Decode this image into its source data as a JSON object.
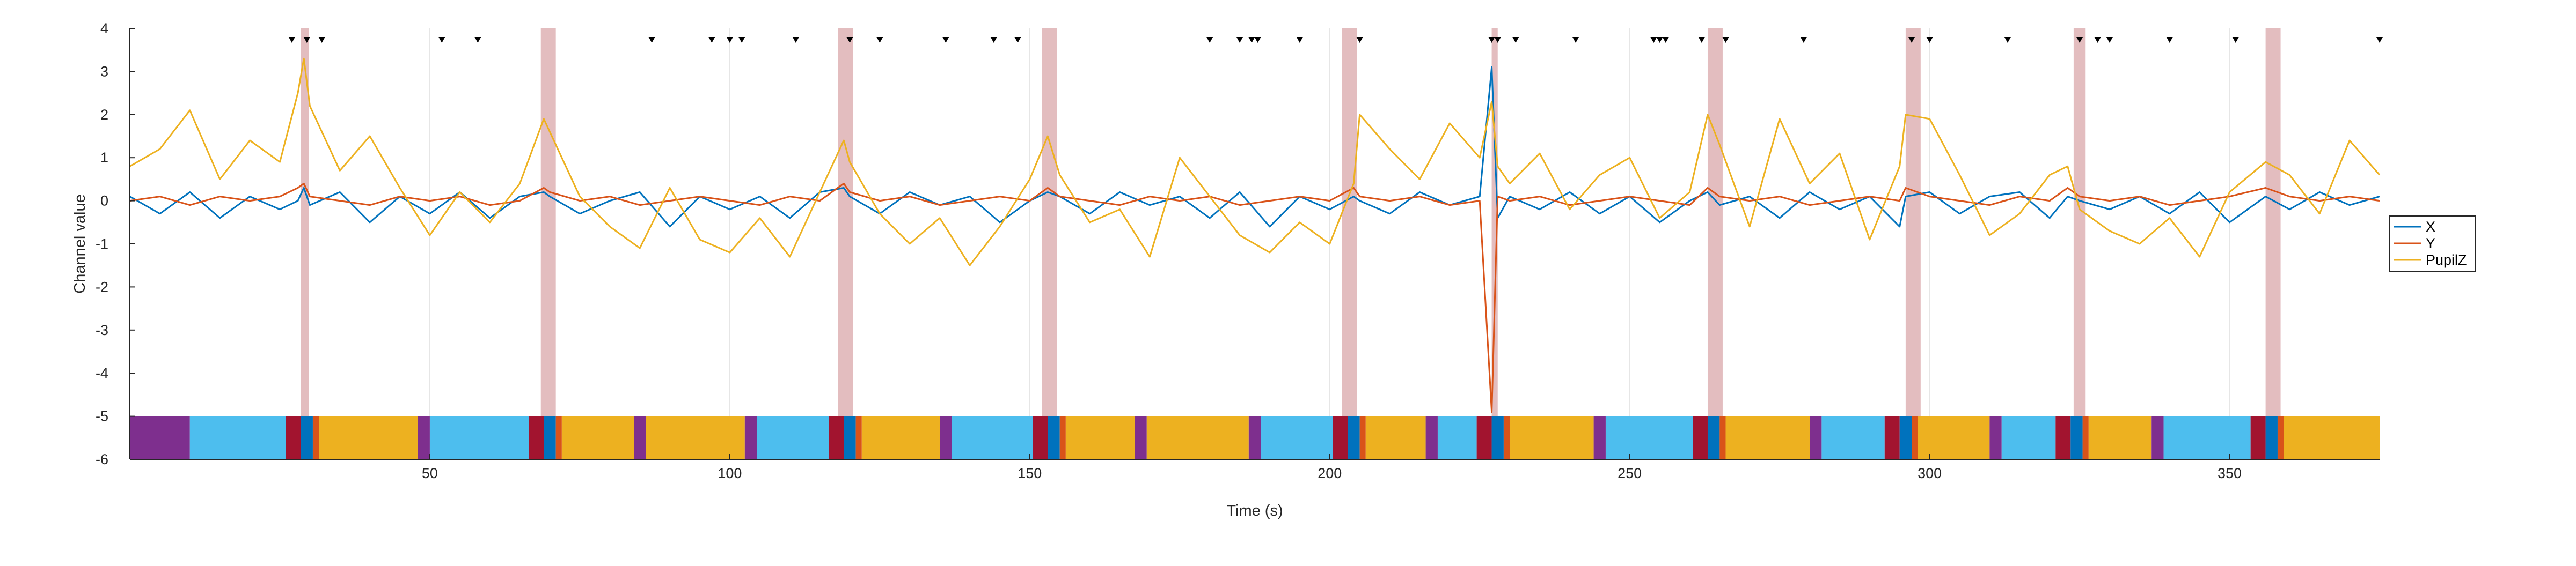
{
  "chart_data": {
    "type": "line",
    "xlabel": "Time (s)",
    "ylabel": "Channel value",
    "xlim": [
      0,
      375
    ],
    "ylim": [
      -6,
      4
    ],
    "xticks": [
      50,
      100,
      150,
      200,
      250,
      300,
      350
    ],
    "yticks": [
      -6,
      -5,
      -4,
      -3,
      -2,
      -1,
      0,
      1,
      2,
      3,
      4
    ],
    "grid": "vertical",
    "legend_position": "right",
    "colors": {
      "X": "#0072BD",
      "Y": "#D95319",
      "PupilZ": "#EDB120",
      "highlight": "#C77B80"
    },
    "series": [
      {
        "name": "X",
        "x": [
          0,
          5,
          10,
          15,
          20,
          25,
          28,
          29,
          30,
          35,
          40,
          45,
          50,
          55,
          60,
          65,
          69,
          70,
          75,
          80,
          85,
          90,
          95,
          100,
          105,
          110,
          115,
          119,
          120,
          125,
          130,
          135,
          140,
          145,
          150,
          153,
          155,
          160,
          165,
          170,
          175,
          180,
          185,
          190,
          195,
          200,
          204,
          205,
          210,
          215,
          220,
          225,
          227,
          228,
          230,
          235,
          240,
          245,
          250,
          255,
          260,
          263,
          265,
          270,
          275,
          280,
          285,
          290,
          295,
          296,
          300,
          305,
          310,
          315,
          320,
          323,
          325,
          330,
          335,
          340,
          345,
          350,
          356,
          360,
          365,
          370,
          375
        ],
        "y": [
          0.1,
          -0.3,
          0.2,
          -0.4,
          0.1,
          -0.2,
          0.0,
          0.3,
          -0.1,
          0.2,
          -0.5,
          0.1,
          -0.3,
          0.2,
          -0.4,
          0.1,
          0.2,
          0.1,
          -0.3,
          0.0,
          0.2,
          -0.6,
          0.1,
          -0.2,
          0.1,
          -0.4,
          0.2,
          0.3,
          0.1,
          -0.3,
          0.2,
          -0.1,
          0.1,
          -0.5,
          0.0,
          0.2,
          0.1,
          -0.3,
          0.2,
          -0.1,
          0.1,
          -0.4,
          0.2,
          -0.6,
          0.1,
          -0.2,
          0.1,
          0.0,
          -0.3,
          0.2,
          -0.1,
          0.1,
          3.1,
          -0.4,
          0.1,
          -0.2,
          0.2,
          -0.3,
          0.1,
          -0.5,
          0.0,
          0.2,
          -0.1,
          0.1,
          -0.4,
          0.2,
          -0.2,
          0.1,
          -0.6,
          0.1,
          0.2,
          -0.3,
          0.1,
          0.2,
          -0.4,
          0.1,
          0.0,
          -0.2,
          0.1,
          -0.3,
          0.2,
          -0.5,
          0.1,
          -0.2,
          0.2,
          -0.1,
          0.1
        ]
      },
      {
        "name": "Y",
        "x": [
          0,
          5,
          10,
          15,
          20,
          25,
          28,
          29,
          30,
          35,
          40,
          45,
          50,
          55,
          60,
          65,
          69,
          70,
          75,
          80,
          85,
          90,
          95,
          100,
          105,
          110,
          115,
          119,
          120,
          125,
          130,
          135,
          140,
          145,
          150,
          153,
          155,
          160,
          165,
          170,
          175,
          180,
          185,
          190,
          195,
          200,
          204,
          205,
          210,
          215,
          220,
          225,
          227,
          228,
          230,
          235,
          240,
          245,
          250,
          255,
          260,
          263,
          265,
          270,
          275,
          280,
          285,
          290,
          295,
          296,
          300,
          305,
          310,
          315,
          320,
          323,
          325,
          330,
          335,
          340,
          345,
          350,
          356,
          360,
          365,
          370,
          375
        ],
        "y": [
          0.0,
          0.1,
          -0.1,
          0.1,
          0.0,
          0.1,
          0.3,
          0.4,
          0.1,
          0.0,
          -0.1,
          0.1,
          0.0,
          0.1,
          -0.1,
          0.0,
          0.3,
          0.2,
          0.0,
          0.1,
          -0.1,
          0.0,
          0.1,
          0.0,
          -0.1,
          0.1,
          0.0,
          0.4,
          0.2,
          0.0,
          0.1,
          -0.1,
          0.0,
          0.1,
          0.0,
          0.3,
          0.1,
          0.0,
          -0.1,
          0.1,
          0.0,
          0.1,
          -0.1,
          0.0,
          0.1,
          0.0,
          0.3,
          0.1,
          0.0,
          0.1,
          -0.1,
          0.0,
          -4.9,
          0.1,
          0.0,
          0.1,
          -0.1,
          0.0,
          0.1,
          0.0,
          -0.1,
          0.3,
          0.1,
          0.0,
          0.1,
          -0.1,
          0.0,
          0.1,
          0.0,
          0.3,
          0.1,
          0.0,
          -0.1,
          0.1,
          0.0,
          0.3,
          0.1,
          0.0,
          0.1,
          -0.1,
          0.0,
          0.1,
          0.3,
          0.1,
          0.0,
          0.1,
          0.0
        ]
      },
      {
        "name": "PupilZ",
        "x": [
          0,
          5,
          10,
          15,
          20,
          25,
          28,
          29,
          30,
          35,
          40,
          45,
          50,
          55,
          60,
          65,
          69,
          70,
          75,
          80,
          85,
          90,
          95,
          100,
          105,
          110,
          115,
          119,
          120,
          125,
          130,
          135,
          140,
          145,
          150,
          153,
          155,
          160,
          165,
          170,
          175,
          180,
          185,
          190,
          195,
          200,
          204,
          205,
          210,
          215,
          220,
          225,
          227,
          228,
          230,
          235,
          240,
          245,
          250,
          255,
          260,
          263,
          265,
          270,
          275,
          280,
          285,
          290,
          295,
          296,
          300,
          305,
          310,
          315,
          320,
          323,
          325,
          330,
          335,
          340,
          345,
          350,
          356,
          360,
          365,
          370,
          375
        ],
        "y": [
          0.8,
          1.2,
          2.1,
          0.5,
          1.4,
          0.9,
          2.5,
          3.3,
          2.2,
          0.7,
          1.5,
          0.3,
          -0.8,
          0.2,
          -0.5,
          0.4,
          1.9,
          1.6,
          0.1,
          -0.6,
          -1.1,
          0.3,
          -0.9,
          -1.2,
          -0.4,
          -1.3,
          0.2,
          1.4,
          0.9,
          -0.3,
          -1.0,
          -0.4,
          -1.5,
          -0.6,
          0.5,
          1.5,
          0.6,
          -0.5,
          -0.2,
          -1.3,
          1.0,
          0.1,
          -0.8,
          -1.2,
          -0.5,
          -1.0,
          0.4,
          2.0,
          1.2,
          0.5,
          1.8,
          1.0,
          2.3,
          0.8,
          0.4,
          1.1,
          -0.2,
          0.6,
          1.0,
          -0.4,
          0.2,
          2.0,
          1.3,
          -0.6,
          1.9,
          0.4,
          1.1,
          -0.9,
          0.8,
          2.0,
          1.9,
          0.6,
          -0.8,
          -0.3,
          0.6,
          0.8,
          -0.2,
          -0.7,
          -1.0,
          -0.4,
          -1.3,
          0.2,
          0.9,
          0.6,
          -0.3,
          1.4,
          0.6
        ]
      }
    ],
    "highlight_bands": [
      [
        28.5,
        29.8
      ],
      [
        68.5,
        71
      ],
      [
        118,
        120.5
      ],
      [
        152,
        154.5
      ],
      [
        202,
        204.5
      ],
      [
        227,
        228
      ],
      [
        263,
        265.5
      ],
      [
        296,
        298.5
      ],
      [
        324,
        326
      ],
      [
        356,
        358.5
      ]
    ],
    "event_markers": [
      27,
      29.5,
      32,
      52,
      58,
      87,
      97,
      100,
      102,
      111,
      120,
      125,
      136,
      144,
      148,
      180,
      185,
      187,
      188,
      195,
      205,
      227,
      228,
      231,
      241,
      254,
      255,
      256,
      262,
      266,
      279,
      297,
      300,
      313,
      325,
      328,
      330,
      340,
      351,
      375
    ],
    "bottom_bar": {
      "y_range": [
        -6,
        -5
      ],
      "segments": [
        {
          "start": 0,
          "end": 10,
          "color": "#7E2F8E"
        },
        {
          "start": 10,
          "end": 26,
          "color": "#4DBEEE"
        },
        {
          "start": 26,
          "end": 28.5,
          "color": "#A2142F"
        },
        {
          "start": 28.5,
          "end": 30.5,
          "color": "#0072BD"
        },
        {
          "start": 30.5,
          "end": 31.5,
          "color": "#D95319"
        },
        {
          "start": 31.5,
          "end": 48,
          "color": "#EDB120"
        },
        {
          "start": 48,
          "end": 50,
          "color": "#7E2F8E"
        },
        {
          "start": 50,
          "end": 66.5,
          "color": "#4DBEEE"
        },
        {
          "start": 66.5,
          "end": 69,
          "color": "#A2142F"
        },
        {
          "start": 69,
          "end": 71,
          "color": "#0072BD"
        },
        {
          "start": 71,
          "end": 72,
          "color": "#D95319"
        },
        {
          "start": 72,
          "end": 84,
          "color": "#EDB120"
        },
        {
          "start": 84,
          "end": 86,
          "color": "#7E2F8E"
        },
        {
          "start": 86,
          "end": 102.5,
          "color": "#EDB120"
        },
        {
          "start": 102.5,
          "end": 104.5,
          "color": "#7E2F8E"
        },
        {
          "start": 104.5,
          "end": 116.5,
          "color": "#4DBEEE"
        },
        {
          "start": 116.5,
          "end": 119,
          "color": "#A2142F"
        },
        {
          "start": 119,
          "end": 121,
          "color": "#0072BD"
        },
        {
          "start": 121,
          "end": 122,
          "color": "#D95319"
        },
        {
          "start": 122,
          "end": 135,
          "color": "#EDB120"
        },
        {
          "start": 135,
          "end": 137,
          "color": "#7E2F8E"
        },
        {
          "start": 137,
          "end": 150.5,
          "color": "#4DBEEE"
        },
        {
          "start": 150.5,
          "end": 153,
          "color": "#A2142F"
        },
        {
          "start": 153,
          "end": 155,
          "color": "#0072BD"
        },
        {
          "start": 155,
          "end": 156,
          "color": "#D95319"
        },
        {
          "start": 156,
          "end": 167.5,
          "color": "#EDB120"
        },
        {
          "start": 167.5,
          "end": 169.5,
          "color": "#7E2F8E"
        },
        {
          "start": 169.5,
          "end": 186.5,
          "color": "#EDB120"
        },
        {
          "start": 186.5,
          "end": 188.5,
          "color": "#7E2F8E"
        },
        {
          "start": 188.5,
          "end": 200.5,
          "color": "#4DBEEE"
        },
        {
          "start": 200.5,
          "end": 203,
          "color": "#A2142F"
        },
        {
          "start": 203,
          "end": 205,
          "color": "#0072BD"
        },
        {
          "start": 205,
          "end": 206,
          "color": "#D95319"
        },
        {
          "start": 206,
          "end": 216,
          "color": "#EDB120"
        },
        {
          "start": 216,
          "end": 218,
          "color": "#7E2F8E"
        },
        {
          "start": 218,
          "end": 224.5,
          "color": "#4DBEEE"
        },
        {
          "start": 224.5,
          "end": 227,
          "color": "#A2142F"
        },
        {
          "start": 227,
          "end": 229,
          "color": "#0072BD"
        },
        {
          "start": 229,
          "end": 230,
          "color": "#D95319"
        },
        {
          "start": 230,
          "end": 244,
          "color": "#EDB120"
        },
        {
          "start": 244,
          "end": 246,
          "color": "#7E2F8E"
        },
        {
          "start": 246,
          "end": 260.5,
          "color": "#4DBEEE"
        },
        {
          "start": 260.5,
          "end": 263,
          "color": "#A2142F"
        },
        {
          "start": 263,
          "end": 265,
          "color": "#0072BD"
        },
        {
          "start": 265,
          "end": 266,
          "color": "#D95319"
        },
        {
          "start": 266,
          "end": 280,
          "color": "#EDB120"
        },
        {
          "start": 280,
          "end": 282,
          "color": "#7E2F8E"
        },
        {
          "start": 282,
          "end": 292.5,
          "color": "#4DBEEE"
        },
        {
          "start": 292.5,
          "end": 295,
          "color": "#A2142F"
        },
        {
          "start": 295,
          "end": 297,
          "color": "#0072BD"
        },
        {
          "start": 297,
          "end": 298,
          "color": "#D95319"
        },
        {
          "start": 298,
          "end": 310,
          "color": "#EDB120"
        },
        {
          "start": 310,
          "end": 312,
          "color": "#7E2F8E"
        },
        {
          "start": 312,
          "end": 321,
          "color": "#4DBEEE"
        },
        {
          "start": 321,
          "end": 323.5,
          "color": "#A2142F"
        },
        {
          "start": 323.5,
          "end": 325.5,
          "color": "#0072BD"
        },
        {
          "start": 325.5,
          "end": 326.5,
          "color": "#D95319"
        },
        {
          "start": 326.5,
          "end": 337,
          "color": "#EDB120"
        },
        {
          "start": 337,
          "end": 339,
          "color": "#7E2F8E"
        },
        {
          "start": 339,
          "end": 353.5,
          "color": "#4DBEEE"
        },
        {
          "start": 353.5,
          "end": 356,
          "color": "#A2142F"
        },
        {
          "start": 356,
          "end": 358,
          "color": "#0072BD"
        },
        {
          "start": 358,
          "end": 359,
          "color": "#D95319"
        },
        {
          "start": 359,
          "end": 375,
          "color": "#EDB120"
        }
      ]
    }
  }
}
